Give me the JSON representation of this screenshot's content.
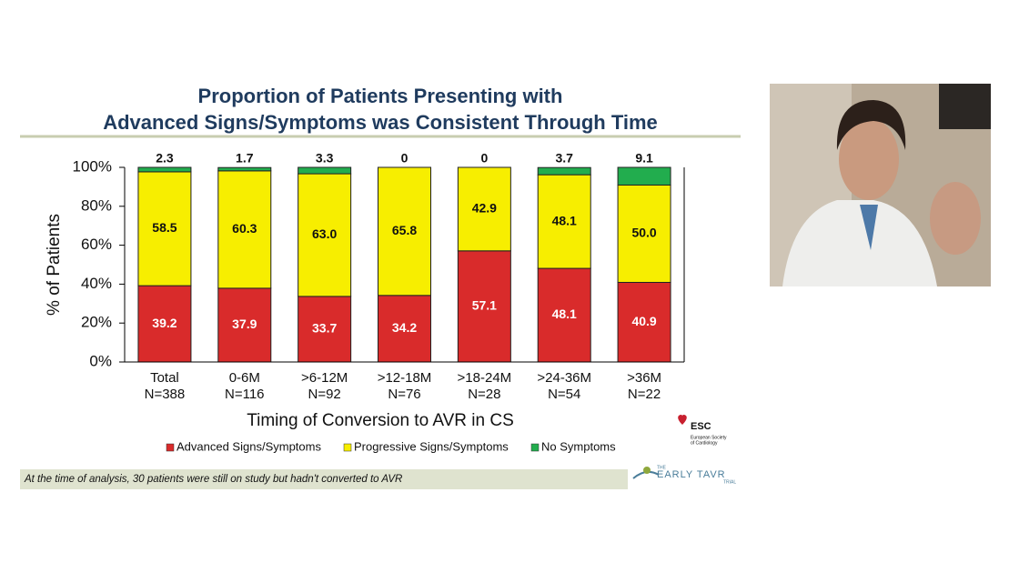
{
  "chart_data": {
    "type": "stacked_bar",
    "title_lines": [
      "Proportion of Patients Presenting with",
      "Advanced Signs/Symptoms was Consistent Through Time"
    ],
    "y_label": "% of Patients",
    "x_label": "Timing of Conversion to AVR in CS",
    "categories": [
      "Total",
      "0-6M",
      ">6-12M",
      ">12-18M",
      ">18-24M",
      ">24-36M",
      ">36M"
    ],
    "category_counts": [
      "N=388",
      "N=116",
      "N=92",
      "N=76",
      "N=28",
      "N=54",
      "N=22"
    ],
    "series": [
      {
        "name": "Advanced Signs/Symptoms",
        "color": "#d92b2b",
        "values": [
          39.2,
          37.9,
          33.7,
          34.2,
          57.1,
          48.1,
          40.9
        ]
      },
      {
        "name": "Progressive Signs/Symptoms",
        "color": "#f7ee00",
        "values": [
          58.5,
          60.3,
          63.0,
          65.8,
          42.9,
          48.1,
          50.0
        ],
        "value_labels": [
          "58.5",
          "60.3",
          "63.0",
          "65.8",
          "42.9",
          "48.1",
          "50.0"
        ]
      },
      {
        "name": "No Symptoms",
        "color": "#22ad4e",
        "values": [
          2.3,
          1.7,
          3.3,
          0,
          0,
          3.7,
          9.1
        ]
      }
    ],
    "ylim": [
      0,
      100
    ],
    "yticks": [
      {
        "value": 0,
        "label": "0%"
      },
      {
        "value": 20,
        "label": "20%"
      },
      {
        "value": 40,
        "label": "40%"
      },
      {
        "value": 60,
        "label": "60%"
      },
      {
        "value": 80,
        "label": "80%"
      },
      {
        "value": 100,
        "label": "100%"
      }
    ],
    "legend": "bottom"
  },
  "footnote": "At the time of analysis, 30 patients were still on study but hadn't converted to AVR",
  "logos": {
    "esc": "ESC",
    "esc_full": [
      "European Society",
      "of Cardiology"
    ],
    "trial_top": "THE",
    "trial": "EARLY TAVR",
    "trial_bottom": "TRIAL"
  }
}
